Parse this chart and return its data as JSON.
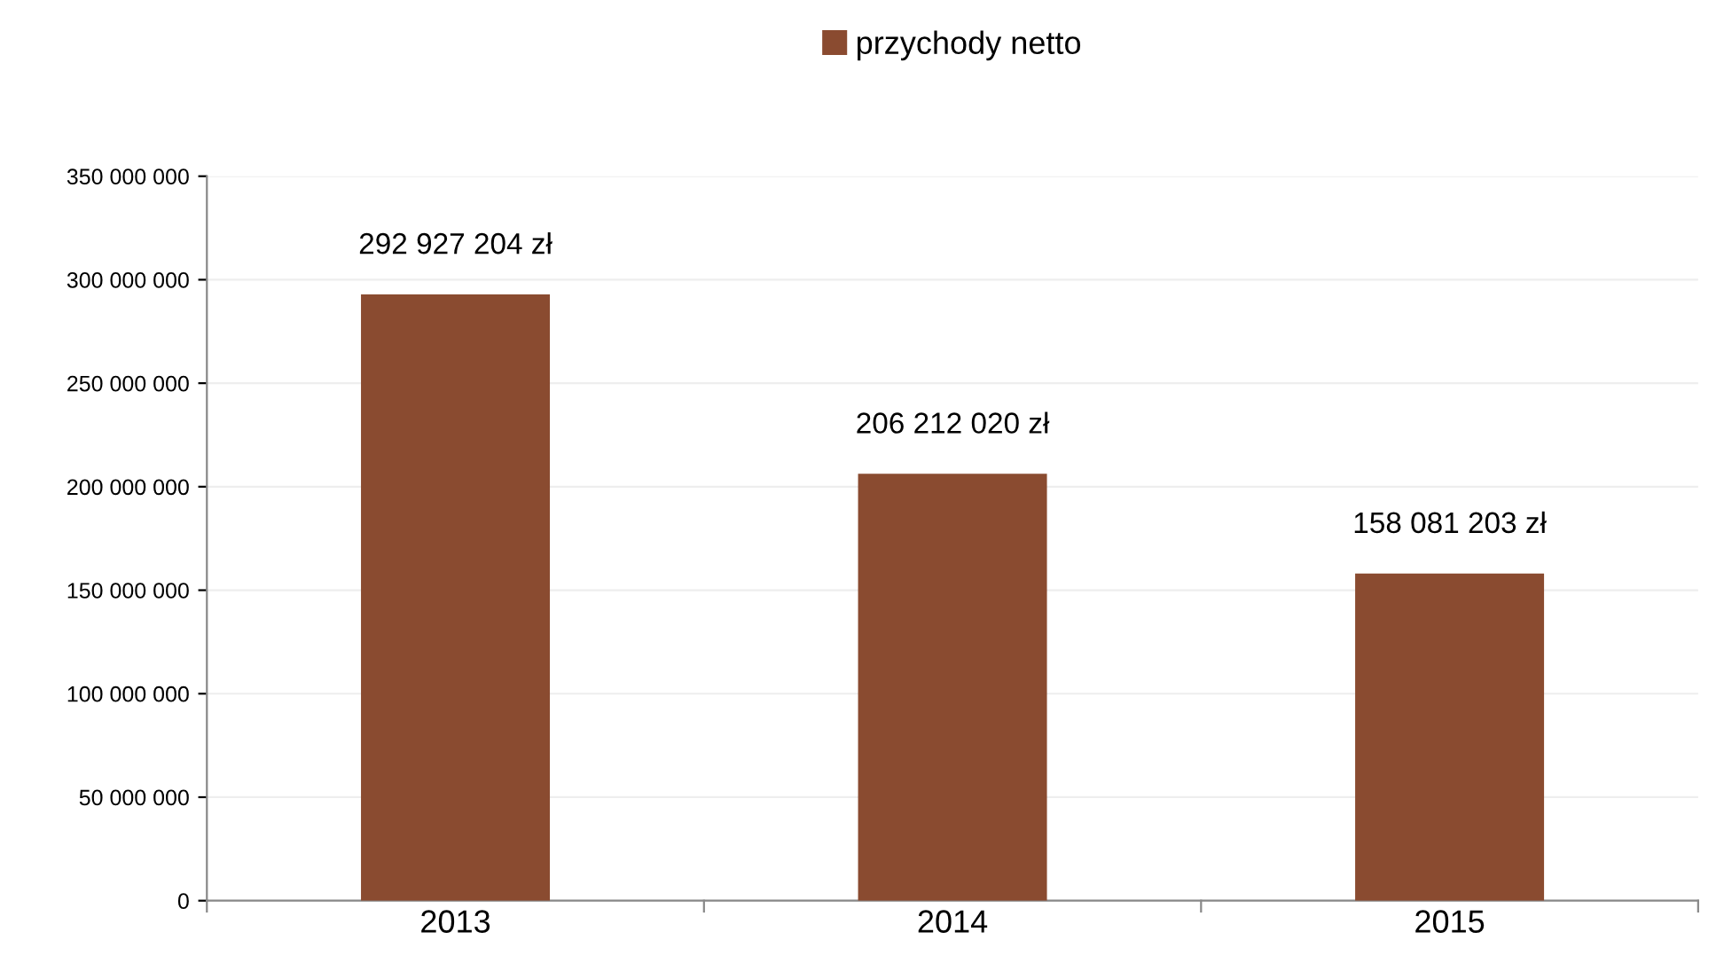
{
  "chart_data": {
    "type": "bar",
    "categories": [
      "2013",
      "2014",
      "2015"
    ],
    "series": [
      {
        "name": "przychody netto",
        "color": "#8a4b30",
        "values": [
          292927204,
          206212020,
          158081203
        ],
        "value_labels": [
          "292 927 204 zł",
          "206 212 020 zł",
          "158 081 203 zł"
        ]
      }
    ],
    "ylim": [
      0,
      350000000
    ],
    "yticks": [
      {
        "value": 0,
        "label": "0"
      },
      {
        "value": 50000000,
        "label": "50 000 000"
      },
      {
        "value": 100000000,
        "label": "100 000 000"
      },
      {
        "value": 150000000,
        "label": "150 000 000"
      },
      {
        "value": 200000000,
        "label": "200 000 000"
      },
      {
        "value": 250000000,
        "label": "250 000 000"
      },
      {
        "value": 300000000,
        "label": "300 000 000"
      },
      {
        "value": 350000000,
        "label": "350 000 000"
      }
    ],
    "grid": "y",
    "legend": "top"
  }
}
